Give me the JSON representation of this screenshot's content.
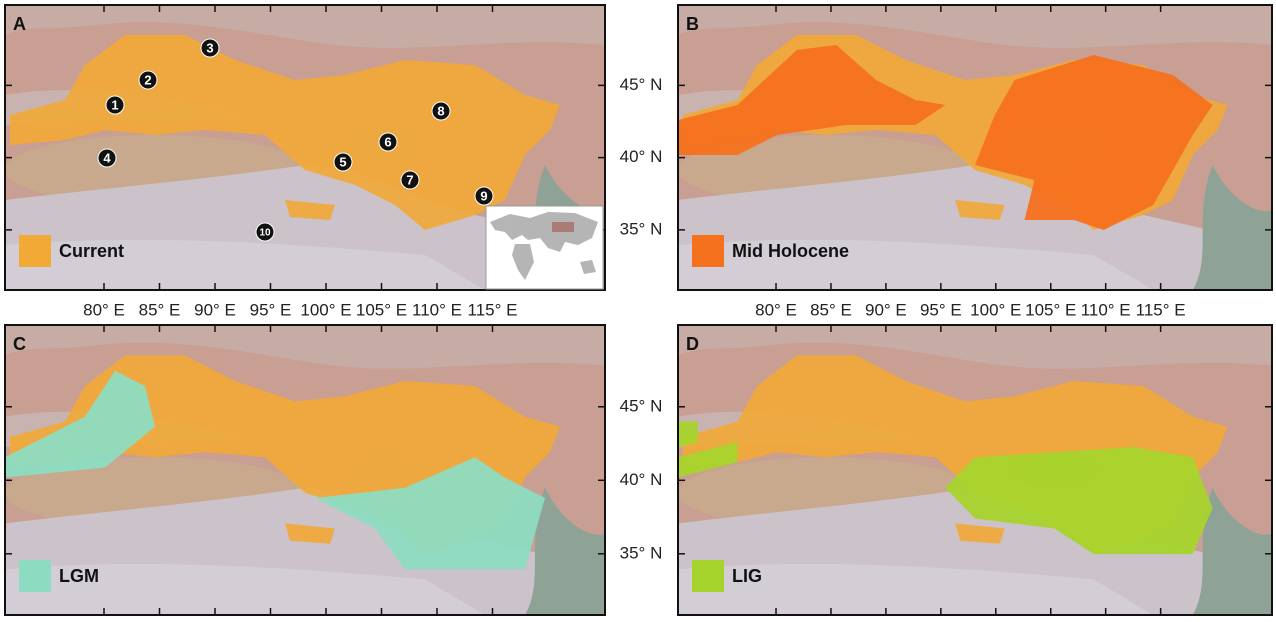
{
  "panels": [
    {
      "letter": "A",
      "legend": "Current",
      "color": "#f2a936"
    },
    {
      "letter": "B",
      "legend": "Mid Holocene",
      "color": "#f5711d"
    },
    {
      "letter": "C",
      "legend": "LGM",
      "color": "#8ddcc2"
    },
    {
      "letter": "D",
      "legend": "LIG",
      "color": "#a7d42c"
    }
  ],
  "sites": [
    "1",
    "2",
    "3",
    "4",
    "5",
    "6",
    "7",
    "8",
    "9",
    "10"
  ],
  "longitude_ticks": [
    {
      "value": 80,
      "label": "80° E"
    },
    {
      "value": 85,
      "label": "85° E"
    },
    {
      "value": 90,
      "label": "90° E"
    },
    {
      "value": 95,
      "label": "95° E"
    },
    {
      "value": 100,
      "label": "100° E"
    },
    {
      "value": 105,
      "label": "105° E"
    },
    {
      "value": 110,
      "label": "110° E"
    },
    {
      "value": 115,
      "label": "115° E"
    }
  ],
  "latitude_ticks": [
    {
      "value": 45,
      "label": "45° N"
    },
    {
      "value": 40,
      "label": "40° N"
    },
    {
      "value": 35,
      "label": "35° N"
    }
  ]
}
